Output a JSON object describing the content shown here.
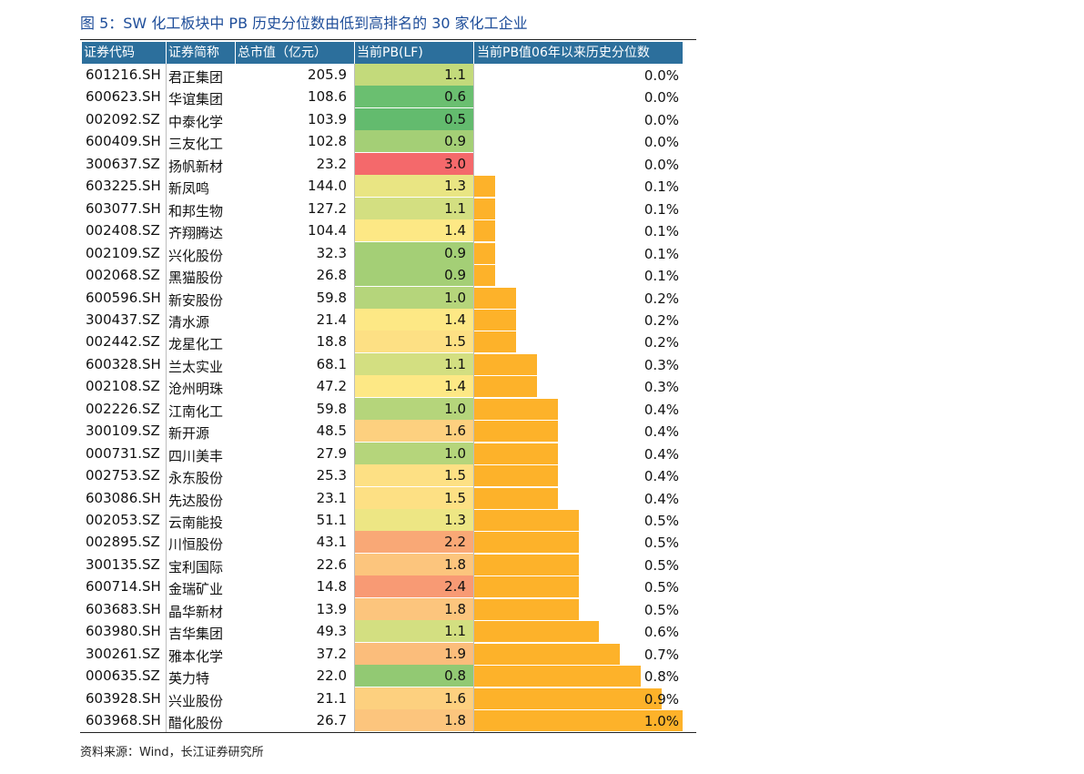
{
  "title": "图 5：SW 化工板块中 PB 历史分位数由低到高排名的 30 家化工企业",
  "source": "资料来源：Wind，长江证券研究所",
  "columns": {
    "code": "证券代码",
    "name": "证券简称",
    "cap": "总市值（亿元）",
    "pb": "当前PB(LF)",
    "pct": "当前PB值06年以来历史分位数"
  },
  "colors": {
    "header_bg": "#2c6f9c",
    "bar": "#fdb22a"
  },
  "rows": [
    {
      "code": "601216.SH",
      "name": "君正集团",
      "cap": "205.9",
      "pb": "1.1",
      "pct": "0.0%",
      "pct_value": 0.0,
      "pb_color": "#c3da7b"
    },
    {
      "code": "600623.SH",
      "name": "华谊集团",
      "cap": "108.6",
      "pb": "0.6",
      "pct": "0.0%",
      "pct_value": 0.0,
      "pb_color": "#6abf70"
    },
    {
      "code": "002092.SZ",
      "name": "中泰化学",
      "cap": "103.9",
      "pb": "0.5",
      "pct": "0.0%",
      "pct_value": 0.0,
      "pb_color": "#63bb6e"
    },
    {
      "code": "600409.SH",
      "name": "三友化工",
      "cap": "102.8",
      "pb": "0.9",
      "pct": "0.0%",
      "pct_value": 0.0,
      "pb_color": "#a4cf76"
    },
    {
      "code": "300637.SZ",
      "name": "扬帆新材",
      "cap": "23.2",
      "pb": "3.0",
      "pct": "0.0%",
      "pct_value": 0.0,
      "pb_color": "#f4696b"
    },
    {
      "code": "603225.SH",
      "name": "新凤鸣",
      "cap": "144.0",
      "pb": "1.3",
      "pct": "0.1%",
      "pct_value": 0.1,
      "pb_color": "#e9e583"
    },
    {
      "code": "603077.SH",
      "name": "和邦生物",
      "cap": "127.2",
      "pb": "1.1",
      "pct": "0.1%",
      "pct_value": 0.1,
      "pb_color": "#d3df81"
    },
    {
      "code": "002408.SZ",
      "name": "齐翔腾达",
      "cap": "104.4",
      "pb": "1.4",
      "pct": "0.1%",
      "pct_value": 0.1,
      "pb_color": "#fde885"
    },
    {
      "code": "002109.SZ",
      "name": "兴化股份",
      "cap": "32.3",
      "pb": "0.9",
      "pct": "0.1%",
      "pct_value": 0.1,
      "pb_color": "#a4cf76"
    },
    {
      "code": "002068.SZ",
      "name": "黑猫股份",
      "cap": "26.8",
      "pb": "0.9",
      "pct": "0.1%",
      "pct_value": 0.1,
      "pb_color": "#a4cf76"
    },
    {
      "code": "600596.SH",
      "name": "新安股份",
      "cap": "59.8",
      "pb": "1.0",
      "pct": "0.2%",
      "pct_value": 0.2,
      "pb_color": "#b5d57b"
    },
    {
      "code": "300437.SZ",
      "name": "清水源",
      "cap": "21.4",
      "pb": "1.4",
      "pct": "0.2%",
      "pct_value": 0.2,
      "pb_color": "#fde885"
    },
    {
      "code": "002442.SZ",
      "name": "龙星化工",
      "cap": "18.8",
      "pb": "1.5",
      "pct": "0.2%",
      "pct_value": 0.2,
      "pb_color": "#fde084"
    },
    {
      "code": "600328.SH",
      "name": "兰太实业",
      "cap": "68.1",
      "pb": "1.1",
      "pct": "0.3%",
      "pct_value": 0.3,
      "pb_color": "#d3df81"
    },
    {
      "code": "002108.SZ",
      "name": "沧州明珠",
      "cap": "47.2",
      "pb": "1.4",
      "pct": "0.3%",
      "pct_value": 0.3,
      "pb_color": "#fde885"
    },
    {
      "code": "002226.SZ",
      "name": "江南化工",
      "cap": "59.8",
      "pb": "1.0",
      "pct": "0.4%",
      "pct_value": 0.4,
      "pb_color": "#b5d57b"
    },
    {
      "code": "300109.SZ",
      "name": "新开源",
      "cap": "48.5",
      "pb": "1.6",
      "pct": "0.4%",
      "pct_value": 0.4,
      "pb_color": "#fdd07f"
    },
    {
      "code": "000731.SZ",
      "name": "四川美丰",
      "cap": "27.9",
      "pb": "1.0",
      "pct": "0.4%",
      "pct_value": 0.4,
      "pb_color": "#b5d57b"
    },
    {
      "code": "002753.SZ",
      "name": "永东股份",
      "cap": "25.3",
      "pb": "1.5",
      "pct": "0.4%",
      "pct_value": 0.4,
      "pb_color": "#fde084"
    },
    {
      "code": "603086.SH",
      "name": "先达股份",
      "cap": "23.1",
      "pb": "1.5",
      "pct": "0.4%",
      "pct_value": 0.4,
      "pb_color": "#fde084"
    },
    {
      "code": "002053.SZ",
      "name": "云南能投",
      "cap": "51.1",
      "pb": "1.3",
      "pct": "0.5%",
      "pct_value": 0.5,
      "pb_color": "#ede684"
    },
    {
      "code": "002895.SZ",
      "name": "川恒股份",
      "cap": "43.1",
      "pb": "2.2",
      "pct": "0.5%",
      "pct_value": 0.5,
      "pb_color": "#f9a876"
    },
    {
      "code": "300135.SZ",
      "name": "宝利国际",
      "cap": "22.6",
      "pb": "1.8",
      "pct": "0.5%",
      "pct_value": 0.5,
      "pb_color": "#fcc57d"
    },
    {
      "code": "600714.SH",
      "name": "金瑞矿业",
      "cap": "14.8",
      "pb": "2.4",
      "pct": "0.5%",
      "pct_value": 0.5,
      "pb_color": "#f89a74"
    },
    {
      "code": "603683.SH",
      "name": "晶华新材",
      "cap": "13.9",
      "pb": "1.8",
      "pct": "0.5%",
      "pct_value": 0.5,
      "pb_color": "#fcc57d"
    },
    {
      "code": "603980.SH",
      "name": "吉华集团",
      "cap": "49.3",
      "pb": "1.1",
      "pct": "0.6%",
      "pct_value": 0.6,
      "pb_color": "#d3df81"
    },
    {
      "code": "300261.SZ",
      "name": "雅本化学",
      "cap": "37.2",
      "pb": "1.9",
      "pct": "0.7%",
      "pct_value": 0.7,
      "pb_color": "#fbbd7b"
    },
    {
      "code": "000635.SZ",
      "name": "英力特",
      "cap": "22.0",
      "pb": "0.8",
      "pct": "0.8%",
      "pct_value": 0.8,
      "pb_color": "#92c973"
    },
    {
      "code": "603928.SH",
      "name": "兴业股份",
      "cap": "21.1",
      "pb": "1.6",
      "pct": "0.9%",
      "pct_value": 0.9,
      "pb_color": "#fdd07f"
    },
    {
      "code": "603968.SH",
      "name": "醋化股份",
      "cap": "26.7",
      "pb": "1.8",
      "pct": "1.0%",
      "pct_value": 1.0,
      "pb_color": "#fcc57d"
    }
  ]
}
